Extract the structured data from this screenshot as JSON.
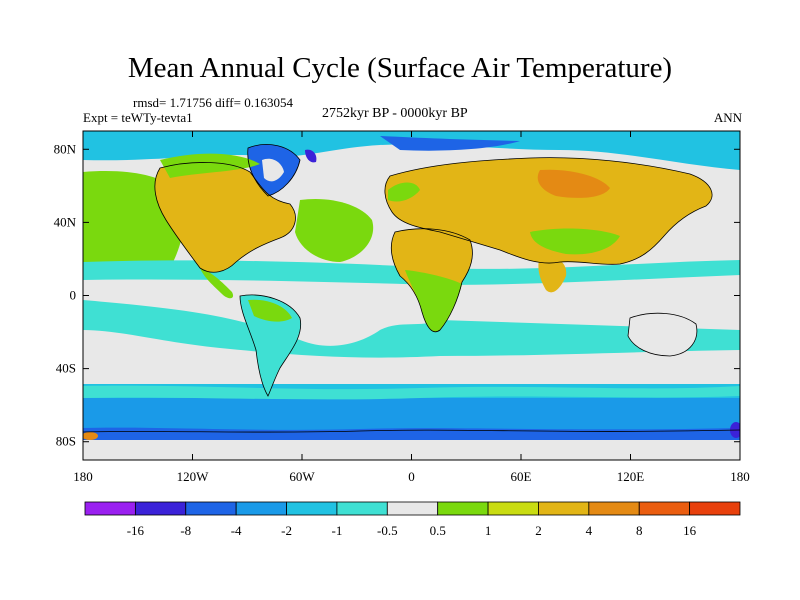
{
  "header": {
    "title": "Mean Annual Cycle (Surface Air Temperature)",
    "stats": "rmsd= 1.71756 diff= 0.163054",
    "experiment": "Expt = teWTy-tevta1",
    "period": "2752kyr BP - 0000kyr BP",
    "season": "ANN"
  },
  "axes": {
    "lat_ticks": [
      {
        "label": "80N",
        "value": 80
      },
      {
        "label": "40N",
        "value": 40
      },
      {
        "label": "0",
        "value": 0
      },
      {
        "label": "40S",
        "value": -40
      },
      {
        "label": "80S",
        "value": -80
      }
    ],
    "lon_ticks": [
      {
        "label": "180",
        "value": -180
      },
      {
        "label": "120W",
        "value": -120
      },
      {
        "label": "60W",
        "value": -60
      },
      {
        "label": "0",
        "value": 0
      },
      {
        "label": "60E",
        "value": 60
      },
      {
        "label": "120E",
        "value": 120
      },
      {
        "label": "180",
        "value": 180
      }
    ],
    "lon_range": [
      -180,
      180
    ],
    "lat_range": [
      -90,
      90
    ]
  },
  "colorbar": {
    "colors": [
      "#9a20f0",
      "#3b22d8",
      "#1e64e6",
      "#1a9ae8",
      "#21c2e2",
      "#3fe0d3",
      "#e8e8e8",
      "#7ad90e",
      "#c9dc12",
      "#e2b516",
      "#e48a14",
      "#ea5d10",
      "#e8400c"
    ],
    "labels": [
      "-16",
      "-8",
      "-4",
      "-2",
      "-1",
      "-0.5",
      "0.5",
      "1",
      "2",
      "4",
      "8",
      "16"
    ]
  },
  "map": {
    "ocean_base": "#e8e8e8",
    "land_warm": "#e2b516",
    "land_mild": "#7ad90e",
    "polar_cold": "#1a9ae8",
    "ocean_cool": "#21c2e2",
    "ocean_cyan": "#3fe0d3"
  }
}
